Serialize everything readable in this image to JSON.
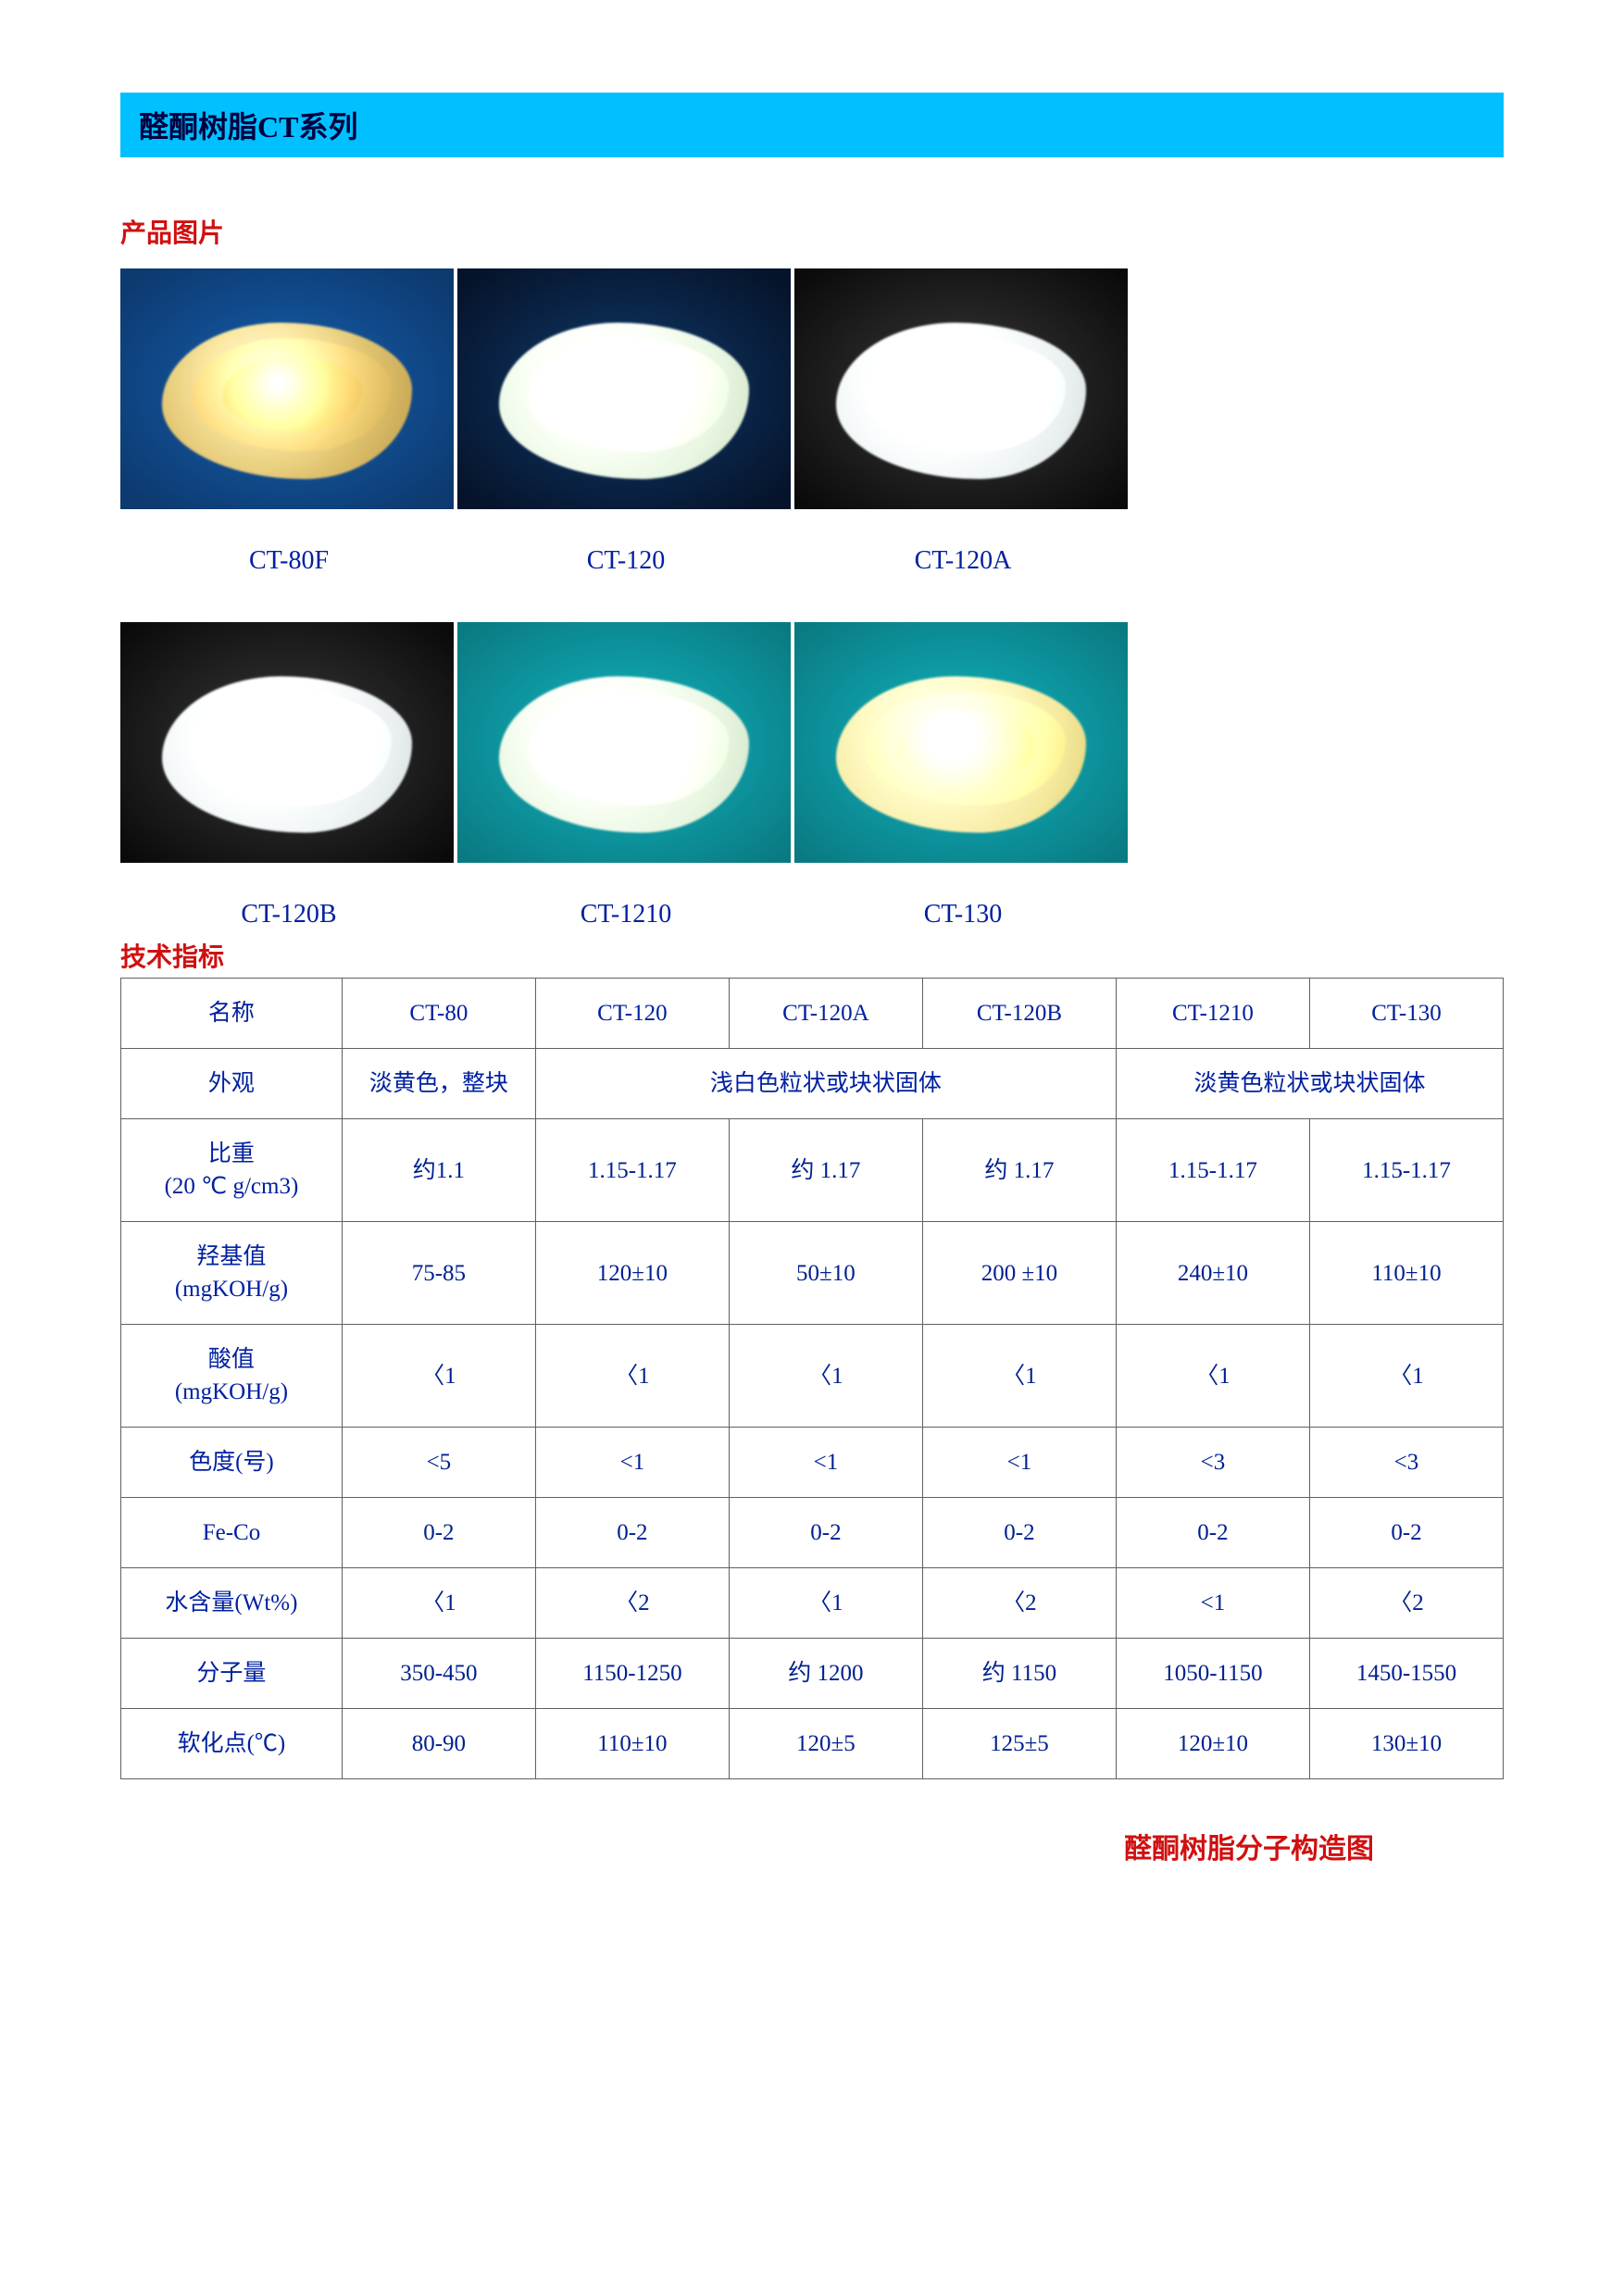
{
  "title": "醛酮树脂CT系列",
  "section_images": "产品图片",
  "section_spec": "技术指标",
  "footer": "醛酮树脂分子构造图",
  "images_row1": [
    {
      "label": "CT-80F",
      "bg": "bg-blue",
      "pile": "p-amber"
    },
    {
      "label": "CT-120",
      "bg": "bg-darkblue",
      "pile": "p-white"
    },
    {
      "label": "CT-120A",
      "bg": "bg-grey",
      "pile": "p-whiteclear"
    }
  ],
  "images_row2": [
    {
      "label": "CT-120B",
      "bg": "bg-grey",
      "pile": "p-whiteclear"
    },
    {
      "label": "CT-1210",
      "bg": "bg-teal",
      "pile": "p-white"
    },
    {
      "label": "CT-130",
      "bg": "bg-teal",
      "pile": "p-pale"
    }
  ],
  "table": {
    "col_widths_pct": [
      16,
      14,
      14,
      14,
      14,
      14,
      14
    ],
    "header": [
      "名称",
      "CT-80",
      "CT-120",
      "CT-120A",
      "CT-120B",
      "CT-1210",
      "CT-130"
    ],
    "appearance_label": "外观",
    "appearance_cells": [
      {
        "text": "淡黄色，整块",
        "span": 1
      },
      {
        "text": "浅白色粒状或块状固体",
        "span": 3
      },
      {
        "text": "淡黄色粒状或块状固体",
        "span": 2
      }
    ],
    "rows": [
      {
        "label": "比重(20 ℃ g/cm3)",
        "values": [
          "约1.1",
          "1.15-1.17",
          "约  1.17",
          "约  1.17",
          "1.15-1.17",
          "1.15-1.17"
        ]
      },
      {
        "label": "羟基值(mgKOH/g)",
        "values": [
          "75-85",
          "120±10",
          "50±10",
          "200 ±10",
          "240±10",
          "110±10"
        ]
      },
      {
        "label": "酸值(mgKOH/g)",
        "values": [
          "〈1",
          "〈1",
          "〈1",
          "〈1",
          "〈1",
          "〈1"
        ]
      },
      {
        "label": "色度(号)",
        "values": [
          "<5",
          "<1",
          "<1",
          "<1",
          "<3",
          "<3"
        ]
      },
      {
        "label": "Fe-Co",
        "values": [
          "0-2",
          "0-2",
          "0-2",
          "0-2",
          "0-2",
          "0-2"
        ]
      },
      {
        "label": "水含量(Wt%)",
        "values": [
          "〈1",
          "〈2",
          "〈1",
          "〈2",
          "<1",
          "〈2"
        ]
      },
      {
        "label": "分子量",
        "values": [
          "350-450",
          "1150-1250",
          "约  1200",
          "约  1150",
          "1050-1150",
          "1450-1550"
        ]
      },
      {
        "label": "软化点(℃)",
        "values": [
          "80-90",
          "110±10",
          "120±5",
          "125±5",
          "120±10",
          "130±10"
        ]
      }
    ]
  },
  "colors": {
    "band_bg": "#00c0ff",
    "red": "#d01010",
    "navy": "#0020a0",
    "border": "#606060"
  }
}
